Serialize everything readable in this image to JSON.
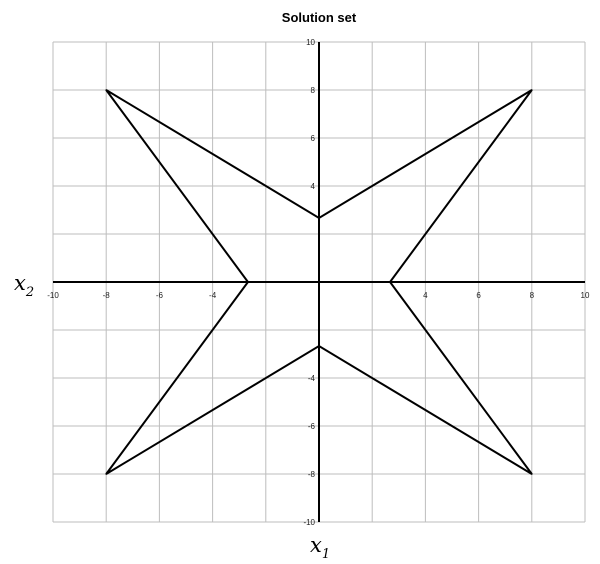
{
  "chart_data": {
    "type": "line",
    "title": "Solution set",
    "xlabel": "x",
    "xlabel_sub": "1",
    "ylabel": "x",
    "ylabel_sub": "2",
    "xlim": [
      -10,
      10
    ],
    "ylim": [
      -10,
      10
    ],
    "grid": true,
    "grid_step": 2,
    "x_tick_labels": [
      "-10",
      "-8",
      "-6",
      "-4",
      "4",
      "6",
      "8",
      "10"
    ],
    "y_tick_labels": [
      "10",
      "8",
      "6",
      "4",
      "-4",
      "-6",
      "-8",
      "-10"
    ],
    "series": [
      {
        "closed": true,
        "color": "#000000",
        "points": [
          [
            -8,
            8
          ],
          [
            0,
            2.67
          ],
          [
            8,
            8
          ],
          [
            2.67,
            0
          ],
          [
            8,
            -8
          ],
          [
            0,
            -2.67
          ],
          [
            -8,
            -8
          ],
          [
            -2.67,
            0
          ]
        ]
      }
    ]
  }
}
